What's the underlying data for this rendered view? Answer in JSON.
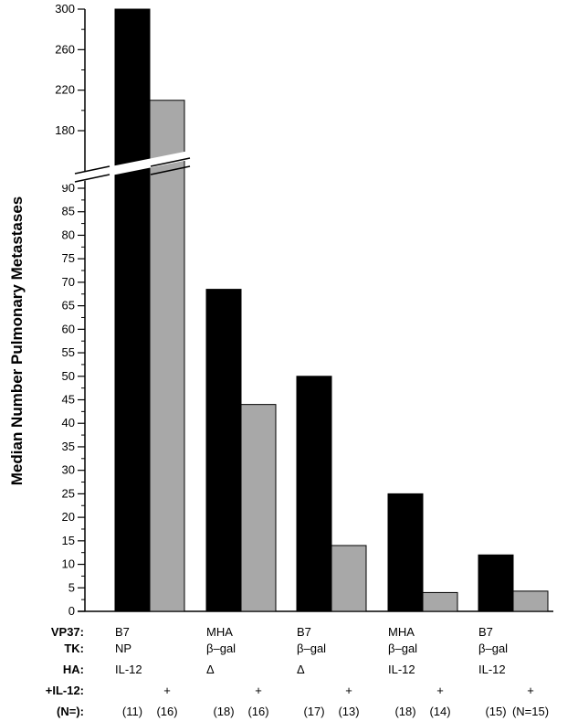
{
  "chart_data": {
    "type": "bar",
    "ylabel": "Median Number Pulmonary Metastases",
    "y_axis_break": true,
    "ylim_lower": [
      0,
      92
    ],
    "ylim_upper": [
      172,
      300
    ],
    "yticks_lower": [
      "0",
      "5",
      "10",
      "15",
      "20",
      "25",
      "30",
      "35",
      "40",
      "45",
      "50",
      "55",
      "60",
      "65",
      "70",
      "75",
      "80",
      "85",
      "90"
    ],
    "yticks_upper": [
      "180",
      "220",
      "260",
      "300"
    ],
    "groups": [
      {
        "VP37": "B7",
        "TK": "NP",
        "HA": "IL-12"
      },
      {
        "VP37": "MHA",
        "TK": "β–gal",
        "HA": "Δ"
      },
      {
        "VP37": "B7",
        "TK": "β–gal",
        "HA": "Δ"
      },
      {
        "VP37": "MHA",
        "TK": "β–gal",
        "HA": "IL-12"
      },
      {
        "VP37": "B7",
        "TK": "β–gal",
        "HA": "IL-12"
      }
    ],
    "series": [
      {
        "name": "",
        "color": "#000000",
        "il12_mark": "",
        "values": [
          300,
          68.5,
          50,
          25,
          12
        ],
        "n": [
          "(11)",
          "(18)",
          "(17)",
          "(18)",
          "(15)"
        ]
      },
      {
        "name": "",
        "color": "#a8a8a8",
        "il12_mark": "+",
        "values": [
          210,
          44,
          14,
          4,
          4.3
        ],
        "n": [
          "(16)",
          "(16)",
          "(13)",
          "(14)",
          "(N=15)"
        ]
      }
    ],
    "row_labels": {
      "VP37": "VP37:",
      "TK": "TK:",
      "HA": "HA:",
      "IL12": "+IL-12:",
      "N": "(N=):"
    }
  }
}
